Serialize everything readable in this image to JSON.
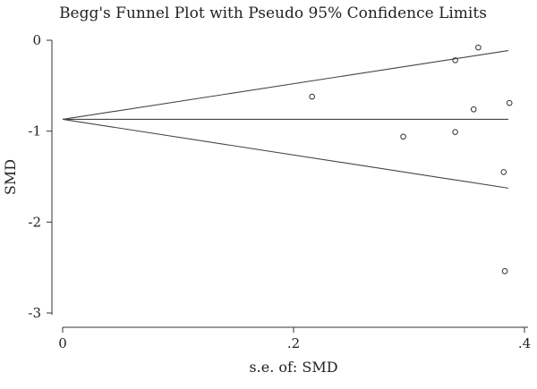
{
  "chart_data": {
    "type": "scatter",
    "title": "Begg's Funnel Plot with Pseudo 95% Confidence Limits",
    "xlabel": "s.e. of: SMD",
    "ylabel": "SMD",
    "xlim": [
      0,
      0.4
    ],
    "ylim": [
      -3,
      0
    ],
    "x_ticks": [
      {
        "value": 0,
        "label": "0"
      },
      {
        "value": 0.2,
        "label": ".2"
      },
      {
        "value": 0.4,
        "label": ".4"
      }
    ],
    "y_ticks": [
      {
        "value": 0,
        "label": "0"
      },
      {
        "value": -1,
        "label": "-1"
      },
      {
        "value": -2,
        "label": "-2"
      },
      {
        "value": -3,
        "label": "-3"
      }
    ],
    "grid": false,
    "pooled_estimate": -0.87,
    "funnel_max_se": 0.386,
    "points": [
      {
        "x": 0.216,
        "y": -0.62
      },
      {
        "x": 0.295,
        "y": -1.06
      },
      {
        "x": 0.34,
        "y": -0.22
      },
      {
        "x": 0.34,
        "y": -1.01
      },
      {
        "x": 0.356,
        "y": -0.76
      },
      {
        "x": 0.36,
        "y": -0.08
      },
      {
        "x": 0.382,
        "y": -1.45
      },
      {
        "x": 0.383,
        "y": -2.54
      },
      {
        "x": 0.387,
        "y": -0.69
      }
    ]
  }
}
